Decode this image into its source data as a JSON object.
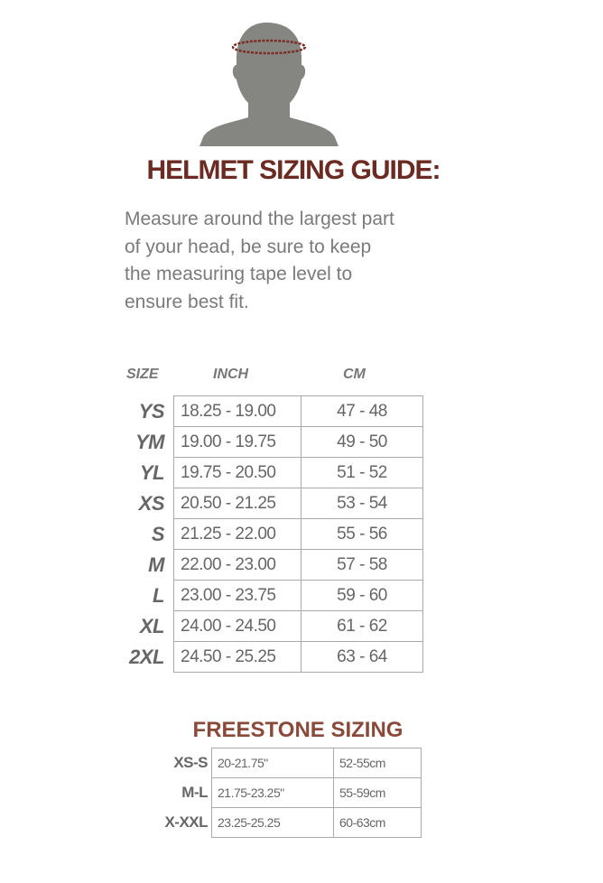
{
  "colors": {
    "title": "#6b2a22",
    "freestone_title": "#8a4a3a",
    "silhouette": "#858582",
    "tape": "#7a2e24"
  },
  "illustration": {
    "icon": "head-measuring-tape-icon"
  },
  "title": "HELMET SIZING GUIDE:",
  "description": [
    "Measure around the largest part",
    "of your head, be sure to keep",
    "the measuring tape level to",
    "ensure best fit."
  ],
  "main_table": {
    "headers": {
      "size": "SIZE",
      "inch": "INCH",
      "cm": "CM"
    },
    "rows": [
      {
        "size": "YS",
        "inch": "18.25 - 19.00",
        "cm": "47 - 48"
      },
      {
        "size": "YM",
        "inch": "19.00 - 19.75",
        "cm": "49 - 50"
      },
      {
        "size": "YL",
        "inch": "19.75 - 20.50",
        "cm": "51 - 52"
      },
      {
        "size": "XS",
        "inch": "20.50 - 21.25",
        "cm": "53 - 54"
      },
      {
        "size": "S",
        "inch": "21.25 - 22.00",
        "cm": "55 - 56"
      },
      {
        "size": "M",
        "inch": "22.00 - 23.00",
        "cm": "57 - 58"
      },
      {
        "size": "L",
        "inch": "23.00 - 23.75",
        "cm": "59 - 60"
      },
      {
        "size": "XL",
        "inch": "24.00 - 24.50",
        "cm": "61 - 62"
      },
      {
        "size": "2XL",
        "inch": "24.50 - 25.25",
        "cm": "63 - 64"
      }
    ]
  },
  "freestone": {
    "title": "FREESTONE SIZING",
    "rows": [
      {
        "size": "XS-S",
        "inch": "20-21.75\"",
        "cm": "52-55cm"
      },
      {
        "size": "M-L",
        "inch": "21.75-23.25\"",
        "cm": "55-59cm"
      },
      {
        "size": "X-XXL",
        "inch": "23.25-25.25",
        "cm": "60-63cm"
      }
    ]
  }
}
